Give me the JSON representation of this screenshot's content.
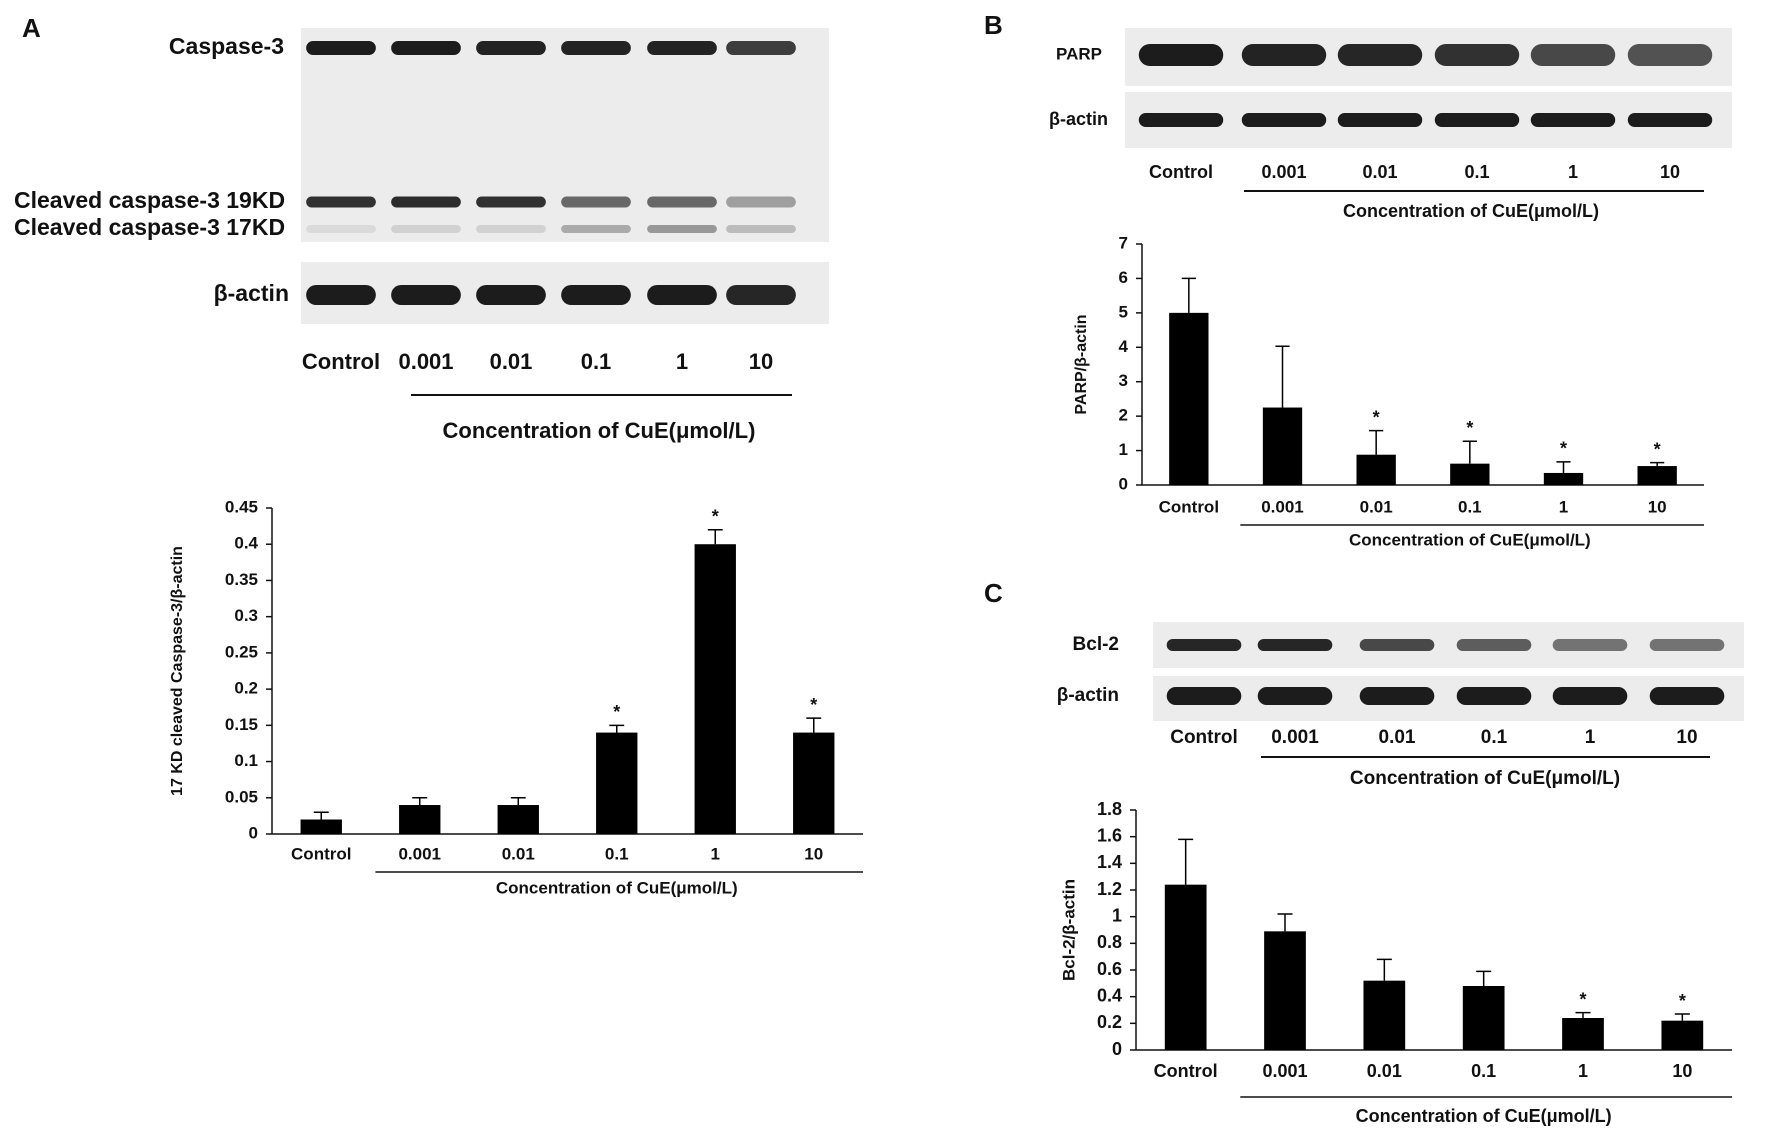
{
  "panels": [
    {
      "label": "A",
      "blot": {
        "rows": [
          "Caspase-3",
          "Cleaved caspase-3 19KD",
          "Cleaved caspase-3 17KD",
          "β-actin"
        ],
        "lanes": [
          "Control",
          "0.001",
          "0.01",
          "0.1",
          "1",
          "10"
        ],
        "caption": "Concentration of CuE(μmol/L)"
      }
    },
    {
      "label": "B",
      "blot": {
        "rows": [
          "PARP",
          "β-actin"
        ],
        "lanes": [
          "Control",
          "0.001",
          "0.01",
          "0.1",
          "1",
          "10"
        ],
        "caption": "Concentration of CuE(μmol/L)"
      }
    },
    {
      "label": "C",
      "blot": {
        "rows": [
          "Bcl-2",
          "β-actin"
        ],
        "lanes": [
          "Control",
          "0.001",
          "0.01",
          "0.1",
          "1",
          "10"
        ],
        "caption": "Concentration of CuE(μmol/L)"
      }
    }
  ],
  "chart_data": [
    {
      "type": "bar",
      "y_label": "17 KD cleaved Caspase-3/β-actin",
      "x_label": "Concentration of CuE(μmol/L)",
      "categories": [
        "Control",
        "0.001",
        "0.01",
        "0.1",
        "1",
        "10"
      ],
      "values": [
        0.02,
        0.04,
        0.04,
        0.14,
        0.4,
        0.14
      ],
      "errors": [
        0.01,
        0.01,
        0.01,
        0.01,
        0.02,
        0.02
      ],
      "significance": [
        null,
        null,
        null,
        "*",
        "*",
        "*"
      ],
      "color": "#000000",
      "ylim": [
        0,
        0.45
      ],
      "yticks": [
        0,
        0.05,
        0.1,
        0.15,
        0.2,
        0.25,
        0.3,
        0.35,
        0.4,
        0.45
      ],
      "grid": false
    },
    {
      "type": "bar",
      "y_label": "PARP/β-actin",
      "x_label": "Concentration of CuE(μmol/L)",
      "categories": [
        "Control",
        "0.001",
        "0.01",
        "0.1",
        "1",
        "10"
      ],
      "values": [
        5.0,
        2.25,
        0.88,
        0.62,
        0.35,
        0.55
      ],
      "errors": [
        1.0,
        1.78,
        0.7,
        0.65,
        0.32,
        0.1
      ],
      "significance": [
        null,
        null,
        "*",
        "*",
        "*",
        "*"
      ],
      "color": "#000000",
      "ylim": [
        0,
        7
      ],
      "yticks": [
        0,
        1,
        2,
        3,
        4,
        5,
        6,
        7
      ],
      "grid": false
    },
    {
      "type": "bar",
      "y_label": "Bcl-2/β-actin",
      "x_label": "Concentration of CuE(μmol/L)",
      "categories": [
        "Control",
        "0.001",
        "0.01",
        "0.1",
        "1",
        "10"
      ],
      "values": [
        1.24,
        0.89,
        0.52,
        0.48,
        0.24,
        0.22
      ],
      "errors": [
        0.34,
        0.13,
        0.16,
        0.11,
        0.04,
        0.05
      ],
      "significance": [
        null,
        null,
        null,
        null,
        "*",
        "*"
      ],
      "color": "#000000",
      "ylim": [
        0,
        1.8
      ],
      "yticks": [
        0,
        0.2,
        0.4,
        0.6,
        0.8,
        1,
        1.2,
        1.4,
        1.6,
        1.8
      ],
      "grid": false
    }
  ]
}
